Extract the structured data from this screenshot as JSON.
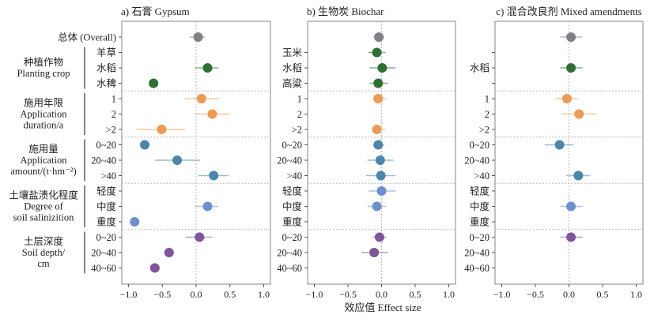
{
  "chart_data": {
    "type": "forest",
    "xlabel": "效应值 Effect size",
    "xlim": [
      -1.1,
      1.1
    ],
    "xticks": [
      -1.0,
      -0.5,
      0.0,
      0.5,
      1.0
    ],
    "xtick_labels": [
      "−1.0",
      "−0.5",
      "0.0",
      "0.5",
      "1.0"
    ],
    "grid": "dotted reference line at 0 and group separators",
    "groups": [
      {
        "key": "overall",
        "label_cn": "",
        "label_en": "",
        "color": "#7f7f86"
      },
      {
        "key": "crop",
        "label_cn": "种植作物",
        "label_en": [
          "Planting crop"
        ],
        "color": "#2e7033"
      },
      {
        "key": "duration",
        "label_cn": "施用年限",
        "label_en": [
          "Application",
          "duration/a"
        ],
        "color": "#ed9a54"
      },
      {
        "key": "amount",
        "label_cn": "施用量",
        "label_en": [
          "Application",
          "amount/(t·hm⁻²)"
        ],
        "color": "#4c86aa"
      },
      {
        "key": "salinity",
        "label_cn": "土壤盐渍化程度",
        "label_en": [
          "Degree of",
          "soil salinizition"
        ],
        "color": "#6f8fcf"
      },
      {
        "key": "depth",
        "label_cn": "土层深度",
        "label_en": [
          "Soil depth/",
          "cm"
        ],
        "color": "#80559a"
      }
    ],
    "row_group_label_overall": "总体 (Overall)",
    "panels": [
      {
        "title": "a) 石膏 Gypsum",
        "rows": [
          {
            "group": "overall",
            "label": "总体 (Overall)",
            "mean": 0.03,
            "lo": -0.1,
            "hi": 0.13
          },
          {
            "group": "crop",
            "label": "羊草",
            "mean": null,
            "lo": null,
            "hi": null
          },
          {
            "group": "crop",
            "label": "水稻",
            "mean": 0.17,
            "lo": -0.02,
            "hi": 0.33
          },
          {
            "group": "crop",
            "label": "水稗",
            "mean": -0.63,
            "lo": null,
            "hi": null
          },
          {
            "group": "duration",
            "label": "1",
            "mean": 0.08,
            "lo": -0.17,
            "hi": 0.33
          },
          {
            "group": "duration",
            "label": "2",
            "mean": 0.24,
            "lo": -0.03,
            "hi": 0.5
          },
          {
            "group": "duration",
            "label": ">2",
            "mean": -0.51,
            "lo": -0.88,
            "hi": -0.16
          },
          {
            "group": "amount",
            "label": "0~20",
            "mean": -0.76,
            "lo": null,
            "hi": null
          },
          {
            "group": "amount",
            "label": "20~40",
            "mean": -0.28,
            "lo": -0.61,
            "hi": 0.06
          },
          {
            "group": "amount",
            "label": ">40",
            "mean": 0.26,
            "lo": 0.03,
            "hi": 0.48
          },
          {
            "group": "salinity",
            "label": "轻度",
            "mean": null,
            "lo": null,
            "hi": null
          },
          {
            "group": "salinity",
            "label": "中度",
            "mean": 0.17,
            "lo": -0.02,
            "hi": 0.33
          },
          {
            "group": "salinity",
            "label": "重度",
            "mean": -0.91,
            "lo": null,
            "hi": null
          },
          {
            "group": "depth",
            "label": "0~20",
            "mean": 0.05,
            "lo": -0.16,
            "hi": 0.24
          },
          {
            "group": "depth",
            "label": "20~40",
            "mean": -0.4,
            "lo": null,
            "hi": null
          },
          {
            "group": "depth",
            "label": "40~60",
            "mean": -0.61,
            "lo": null,
            "hi": null
          }
        ]
      },
      {
        "title": "b) 生物炭 Biochar",
        "rows": [
          {
            "group": "overall",
            "label": "",
            "mean": -0.04,
            "lo": -0.12,
            "hi": 0.04
          },
          {
            "group": "crop",
            "label": "玉米",
            "mean": -0.07,
            "lo": -0.2,
            "hi": 0.06
          },
          {
            "group": "crop",
            "label": "水稻",
            "mean": 0.01,
            "lo": -0.18,
            "hi": 0.21
          },
          {
            "group": "crop",
            "label": "高粱",
            "mean": -0.05,
            "lo": -0.18,
            "hi": 0.1
          },
          {
            "group": "duration",
            "label": "1",
            "mean": -0.05,
            "lo": -0.13,
            "hi": 0.08
          },
          {
            "group": "duration",
            "label": "2",
            "mean": null,
            "lo": null,
            "hi": null
          },
          {
            "group": "duration",
            "label": ">2",
            "mean": -0.07,
            "lo": -0.13,
            "hi": 0.06
          },
          {
            "group": "amount",
            "label": "0~20",
            "mean": -0.05,
            "lo": -0.13,
            "hi": 0.04
          },
          {
            "group": "amount",
            "label": "20~40",
            "mean": -0.02,
            "lo": -0.21,
            "hi": 0.18
          },
          {
            "group": "amount",
            "label": ">40",
            "mean": -0.01,
            "lo": -0.23,
            "hi": 0.21
          },
          {
            "group": "salinity",
            "label": "轻度",
            "mean": 0.0,
            "lo": -0.19,
            "hi": 0.21
          },
          {
            "group": "salinity",
            "label": "中度",
            "mean": -0.07,
            "lo": -0.21,
            "hi": 0.07
          },
          {
            "group": "salinity",
            "label": "重度",
            "mean": null,
            "lo": null,
            "hi": null
          },
          {
            "group": "depth",
            "label": "0~20",
            "mean": -0.03,
            "lo": -0.13,
            "hi": 0.07
          },
          {
            "group": "depth",
            "label": "20~40",
            "mean": -0.11,
            "lo": -0.3,
            "hi": 0.1
          },
          {
            "group": "depth",
            "label": "40~60",
            "mean": null,
            "lo": null,
            "hi": null
          }
        ]
      },
      {
        "title": "c) 混合改良剂 Mixed amendments",
        "rows": [
          {
            "group": "overall",
            "label": "",
            "mean": 0.03,
            "lo": -0.13,
            "hi": 0.2
          },
          {
            "group": "crop",
            "label": "",
            "mean": null,
            "lo": null,
            "hi": null
          },
          {
            "group": "crop",
            "label": "水稻",
            "mean": 0.03,
            "lo": -0.13,
            "hi": 0.2
          },
          {
            "group": "crop",
            "label": "",
            "mean": null,
            "lo": null,
            "hi": null
          },
          {
            "group": "duration",
            "label": "1",
            "mean": -0.03,
            "lo": -0.2,
            "hi": 0.13
          },
          {
            "group": "duration",
            "label": "2",
            "mean": 0.15,
            "lo": -0.11,
            "hi": 0.41
          },
          {
            "group": "duration",
            "label": ">2",
            "mean": null,
            "lo": null,
            "hi": null
          },
          {
            "group": "amount",
            "label": "0~20",
            "mean": -0.14,
            "lo": -0.36,
            "hi": 0.07
          },
          {
            "group": "amount",
            "label": "20~40",
            "mean": null,
            "lo": null,
            "hi": null
          },
          {
            "group": "amount",
            "label": ">40",
            "mean": 0.14,
            "lo": -0.04,
            "hi": 0.32
          },
          {
            "group": "salinity",
            "label": "轻度",
            "mean": null,
            "lo": null,
            "hi": null
          },
          {
            "group": "salinity",
            "label": "中度",
            "mean": 0.03,
            "lo": -0.13,
            "hi": 0.2
          },
          {
            "group": "salinity",
            "label": "重度",
            "mean": null,
            "lo": null,
            "hi": null
          },
          {
            "group": "depth",
            "label": "0~20",
            "mean": 0.03,
            "lo": -0.13,
            "hi": 0.2
          },
          {
            "group": "depth",
            "label": "20~40",
            "mean": null,
            "lo": null,
            "hi": null
          },
          {
            "group": "depth",
            "label": "40~60",
            "mean": null,
            "lo": null,
            "hi": null
          }
        ]
      }
    ]
  }
}
